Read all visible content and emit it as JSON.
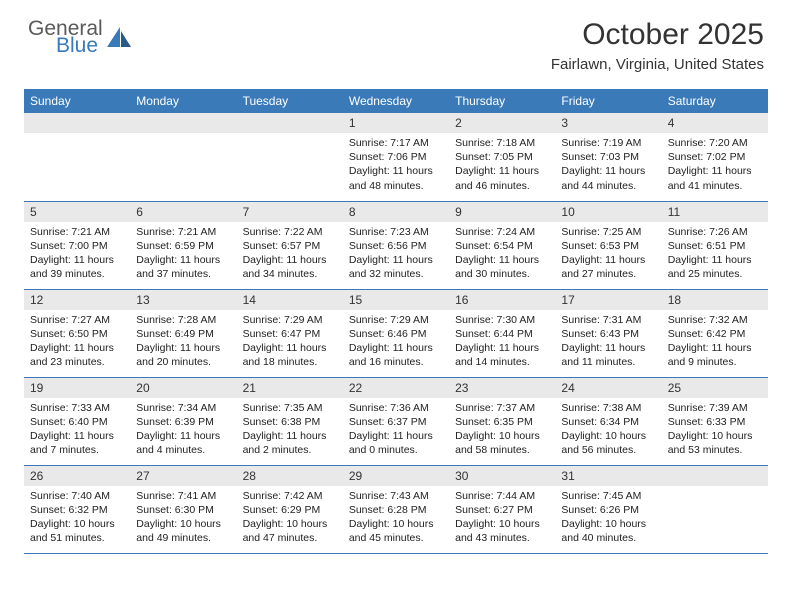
{
  "logo": {
    "general": "General",
    "blue": "Blue"
  },
  "title": "October 2025",
  "location": "Fairlawn, Virginia, United States",
  "colors": {
    "header_bg": "#3a7ab8",
    "header_text": "#ffffff",
    "daynum_bg": "#e9e9e9",
    "row_border": "#3a7ab8",
    "body_text": "#222222",
    "title_text": "#333333",
    "logo_gray": "#5a5a5a",
    "logo_blue": "#3a7ab8",
    "page_bg": "#ffffff"
  },
  "day_labels": [
    "Sunday",
    "Monday",
    "Tuesday",
    "Wednesday",
    "Thursday",
    "Friday",
    "Saturday"
  ],
  "weeks": [
    [
      null,
      null,
      null,
      {
        "n": "1",
        "sr": "Sunrise: 7:17 AM",
        "ss": "Sunset: 7:06 PM",
        "d1": "Daylight: 11 hours",
        "d2": "and 48 minutes."
      },
      {
        "n": "2",
        "sr": "Sunrise: 7:18 AM",
        "ss": "Sunset: 7:05 PM",
        "d1": "Daylight: 11 hours",
        "d2": "and 46 minutes."
      },
      {
        "n": "3",
        "sr": "Sunrise: 7:19 AM",
        "ss": "Sunset: 7:03 PM",
        "d1": "Daylight: 11 hours",
        "d2": "and 44 minutes."
      },
      {
        "n": "4",
        "sr": "Sunrise: 7:20 AM",
        "ss": "Sunset: 7:02 PM",
        "d1": "Daylight: 11 hours",
        "d2": "and 41 minutes."
      }
    ],
    [
      {
        "n": "5",
        "sr": "Sunrise: 7:21 AM",
        "ss": "Sunset: 7:00 PM",
        "d1": "Daylight: 11 hours",
        "d2": "and 39 minutes."
      },
      {
        "n": "6",
        "sr": "Sunrise: 7:21 AM",
        "ss": "Sunset: 6:59 PM",
        "d1": "Daylight: 11 hours",
        "d2": "and 37 minutes."
      },
      {
        "n": "7",
        "sr": "Sunrise: 7:22 AM",
        "ss": "Sunset: 6:57 PM",
        "d1": "Daylight: 11 hours",
        "d2": "and 34 minutes."
      },
      {
        "n": "8",
        "sr": "Sunrise: 7:23 AM",
        "ss": "Sunset: 6:56 PM",
        "d1": "Daylight: 11 hours",
        "d2": "and 32 minutes."
      },
      {
        "n": "9",
        "sr": "Sunrise: 7:24 AM",
        "ss": "Sunset: 6:54 PM",
        "d1": "Daylight: 11 hours",
        "d2": "and 30 minutes."
      },
      {
        "n": "10",
        "sr": "Sunrise: 7:25 AM",
        "ss": "Sunset: 6:53 PM",
        "d1": "Daylight: 11 hours",
        "d2": "and 27 minutes."
      },
      {
        "n": "11",
        "sr": "Sunrise: 7:26 AM",
        "ss": "Sunset: 6:51 PM",
        "d1": "Daylight: 11 hours",
        "d2": "and 25 minutes."
      }
    ],
    [
      {
        "n": "12",
        "sr": "Sunrise: 7:27 AM",
        "ss": "Sunset: 6:50 PM",
        "d1": "Daylight: 11 hours",
        "d2": "and 23 minutes."
      },
      {
        "n": "13",
        "sr": "Sunrise: 7:28 AM",
        "ss": "Sunset: 6:49 PM",
        "d1": "Daylight: 11 hours",
        "d2": "and 20 minutes."
      },
      {
        "n": "14",
        "sr": "Sunrise: 7:29 AM",
        "ss": "Sunset: 6:47 PM",
        "d1": "Daylight: 11 hours",
        "d2": "and 18 minutes."
      },
      {
        "n": "15",
        "sr": "Sunrise: 7:29 AM",
        "ss": "Sunset: 6:46 PM",
        "d1": "Daylight: 11 hours",
        "d2": "and 16 minutes."
      },
      {
        "n": "16",
        "sr": "Sunrise: 7:30 AM",
        "ss": "Sunset: 6:44 PM",
        "d1": "Daylight: 11 hours",
        "d2": "and 14 minutes."
      },
      {
        "n": "17",
        "sr": "Sunrise: 7:31 AM",
        "ss": "Sunset: 6:43 PM",
        "d1": "Daylight: 11 hours",
        "d2": "and 11 minutes."
      },
      {
        "n": "18",
        "sr": "Sunrise: 7:32 AM",
        "ss": "Sunset: 6:42 PM",
        "d1": "Daylight: 11 hours",
        "d2": "and 9 minutes."
      }
    ],
    [
      {
        "n": "19",
        "sr": "Sunrise: 7:33 AM",
        "ss": "Sunset: 6:40 PM",
        "d1": "Daylight: 11 hours",
        "d2": "and 7 minutes."
      },
      {
        "n": "20",
        "sr": "Sunrise: 7:34 AM",
        "ss": "Sunset: 6:39 PM",
        "d1": "Daylight: 11 hours",
        "d2": "and 4 minutes."
      },
      {
        "n": "21",
        "sr": "Sunrise: 7:35 AM",
        "ss": "Sunset: 6:38 PM",
        "d1": "Daylight: 11 hours",
        "d2": "and 2 minutes."
      },
      {
        "n": "22",
        "sr": "Sunrise: 7:36 AM",
        "ss": "Sunset: 6:37 PM",
        "d1": "Daylight: 11 hours",
        "d2": "and 0 minutes."
      },
      {
        "n": "23",
        "sr": "Sunrise: 7:37 AM",
        "ss": "Sunset: 6:35 PM",
        "d1": "Daylight: 10 hours",
        "d2": "and 58 minutes."
      },
      {
        "n": "24",
        "sr": "Sunrise: 7:38 AM",
        "ss": "Sunset: 6:34 PM",
        "d1": "Daylight: 10 hours",
        "d2": "and 56 minutes."
      },
      {
        "n": "25",
        "sr": "Sunrise: 7:39 AM",
        "ss": "Sunset: 6:33 PM",
        "d1": "Daylight: 10 hours",
        "d2": "and 53 minutes."
      }
    ],
    [
      {
        "n": "26",
        "sr": "Sunrise: 7:40 AM",
        "ss": "Sunset: 6:32 PM",
        "d1": "Daylight: 10 hours",
        "d2": "and 51 minutes."
      },
      {
        "n": "27",
        "sr": "Sunrise: 7:41 AM",
        "ss": "Sunset: 6:30 PM",
        "d1": "Daylight: 10 hours",
        "d2": "and 49 minutes."
      },
      {
        "n": "28",
        "sr": "Sunrise: 7:42 AM",
        "ss": "Sunset: 6:29 PM",
        "d1": "Daylight: 10 hours",
        "d2": "and 47 minutes."
      },
      {
        "n": "29",
        "sr": "Sunrise: 7:43 AM",
        "ss": "Sunset: 6:28 PM",
        "d1": "Daylight: 10 hours",
        "d2": "and 45 minutes."
      },
      {
        "n": "30",
        "sr": "Sunrise: 7:44 AM",
        "ss": "Sunset: 6:27 PM",
        "d1": "Daylight: 10 hours",
        "d2": "and 43 minutes."
      },
      {
        "n": "31",
        "sr": "Sunrise: 7:45 AM",
        "ss": "Sunset: 6:26 PM",
        "d1": "Daylight: 10 hours",
        "d2": "and 40 minutes."
      },
      null
    ]
  ]
}
